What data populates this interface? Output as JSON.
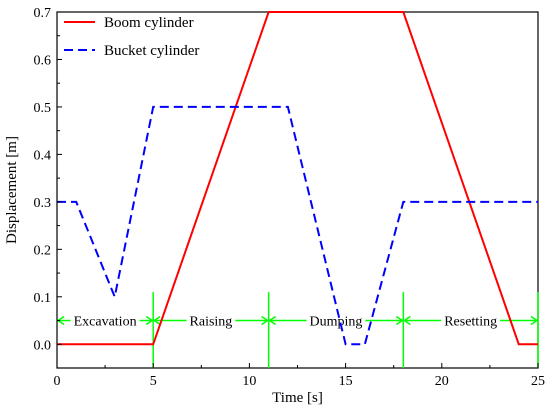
{
  "chart_data": {
    "type": "line",
    "title": "",
    "xlabel": "Time [s]",
    "ylabel": "Displacement [m]",
    "xlim": [
      0,
      25
    ],
    "ylim": [
      -0.05,
      0.7
    ],
    "xticks": [
      0,
      5,
      10,
      15,
      20,
      25
    ],
    "yticks": [
      0.0,
      0.1,
      0.2,
      0.3,
      0.4,
      0.5,
      0.6,
      0.7
    ],
    "ytick_labels": [
      "0.0",
      "0.1",
      "0.2",
      "0.3",
      "0.4",
      "0.5",
      "0.6",
      "0.7"
    ],
    "grid": false,
    "legend_position": "top-left",
    "series": [
      {
        "name": "Boom cylinder",
        "color": "#ff0000",
        "style": "solid",
        "points": [
          [
            0,
            0.0
          ],
          [
            5,
            0.0
          ],
          [
            11,
            0.7
          ],
          [
            18,
            0.7
          ],
          [
            24,
            0.0
          ],
          [
            25,
            0.0
          ]
        ]
      },
      {
        "name": "Bucket cylinder",
        "color": "#0000ff",
        "style": "dashed",
        "points": [
          [
            0,
            0.3
          ],
          [
            1,
            0.3
          ],
          [
            3,
            0.1
          ],
          [
            5,
            0.5
          ],
          [
            12,
            0.5
          ],
          [
            15,
            0.0
          ],
          [
            16,
            0.0
          ],
          [
            18,
            0.3
          ],
          [
            25,
            0.3
          ]
        ]
      }
    ],
    "phases": {
      "y": 0.05,
      "color": "#00ff00",
      "boundaries": [
        0,
        5,
        11,
        18,
        25
      ],
      "items": [
        {
          "label": "Excavation",
          "start": 0,
          "end": 5
        },
        {
          "label": "Raising",
          "start": 5,
          "end": 11
        },
        {
          "label": "Dumping",
          "start": 11,
          "end": 18
        },
        {
          "label": "Resetting",
          "start": 18,
          "end": 25
        }
      ]
    }
  }
}
